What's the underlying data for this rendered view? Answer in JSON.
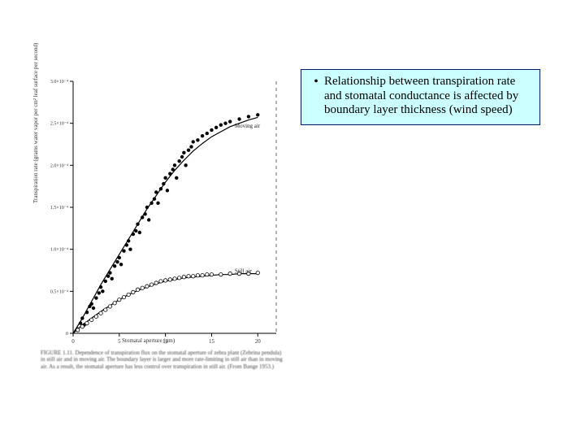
{
  "bullet": {
    "text": "Relationship between transpiration rate and stomatal conductance is affected by boundary layer thickness (wind speed)"
  },
  "chart": {
    "type": "scatter",
    "xlim": [
      0,
      22
    ],
    "ylim": [
      0,
      3.0
    ],
    "y_scale_label": "×10⁻⁴",
    "xlabel": "Stomatal aperture (μm)",
    "ylabel": "Transpiration rate (grams water vapor per cm² leaf surface per second)",
    "xticks": [
      0,
      5,
      10,
      15,
      20
    ],
    "yticks": [
      0,
      0.5,
      1.0,
      1.5,
      2.0,
      2.5,
      3.0
    ],
    "ytick_labels": [
      "0",
      "0.5×10⁻⁴",
      "1.0×10⁻⁴",
      "1.5×10⁻⁴",
      "2.0×10⁻⁴",
      "2.5×10⁻⁴",
      "3.0×10⁻⁴"
    ],
    "background_color": "#ffffff",
    "axis_color": "#000000",
    "marker_color": "#000000",
    "marker_size": 2.2,
    "line_width": 1.2,
    "series": [
      {
        "name": "Moving air",
        "marker": "filled-circle",
        "label_pos": [
          17.5,
          2.45
        ],
        "data": [
          [
            0.5,
            0.05
          ],
          [
            0.8,
            0.12
          ],
          [
            1.0,
            0.18
          ],
          [
            1.2,
            0.1
          ],
          [
            1.5,
            0.25
          ],
          [
            1.8,
            0.32
          ],
          [
            2.0,
            0.35
          ],
          [
            2.2,
            0.3
          ],
          [
            2.5,
            0.42
          ],
          [
            2.8,
            0.48
          ],
          [
            3.0,
            0.55
          ],
          [
            3.2,
            0.5
          ],
          [
            3.5,
            0.62
          ],
          [
            3.8,
            0.68
          ],
          [
            4.0,
            0.72
          ],
          [
            4.2,
            0.65
          ],
          [
            4.5,
            0.8
          ],
          [
            4.8,
            0.85
          ],
          [
            5.0,
            0.9
          ],
          [
            5.2,
            0.82
          ],
          [
            5.5,
            0.98
          ],
          [
            5.8,
            1.05
          ],
          [
            6.0,
            1.1
          ],
          [
            6.2,
            1.0
          ],
          [
            6.5,
            1.18
          ],
          [
            6.8,
            1.22
          ],
          [
            7.0,
            1.3
          ],
          [
            7.2,
            1.2
          ],
          [
            7.5,
            1.38
          ],
          [
            7.8,
            1.42
          ],
          [
            8.0,
            1.5
          ],
          [
            8.2,
            1.35
          ],
          [
            8.5,
            1.55
          ],
          [
            8.8,
            1.6
          ],
          [
            9.0,
            1.68
          ],
          [
            9.2,
            1.55
          ],
          [
            9.5,
            1.72
          ],
          [
            9.8,
            1.78
          ],
          [
            10.0,
            1.85
          ],
          [
            10.2,
            1.7
          ],
          [
            10.5,
            1.9
          ],
          [
            10.8,
            1.95
          ],
          [
            11.0,
            2.0
          ],
          [
            11.2,
            1.85
          ],
          [
            11.5,
            2.05
          ],
          [
            11.8,
            2.1
          ],
          [
            12.0,
            2.15
          ],
          [
            12.2,
            2.0
          ],
          [
            12.5,
            2.18
          ],
          [
            12.8,
            2.22
          ],
          [
            13.0,
            2.28
          ],
          [
            13.5,
            2.3
          ],
          [
            14.0,
            2.35
          ],
          [
            14.5,
            2.38
          ],
          [
            15.0,
            2.42
          ],
          [
            15.5,
            2.45
          ],
          [
            16.0,
            2.48
          ],
          [
            16.5,
            2.5
          ],
          [
            17.0,
            2.52
          ],
          [
            18.0,
            2.55
          ],
          [
            19.0,
            2.58
          ],
          [
            20.0,
            2.6
          ]
        ],
        "fit_curve": [
          [
            0,
            0
          ],
          [
            1,
            0.18
          ],
          [
            2,
            0.38
          ],
          [
            3,
            0.58
          ],
          [
            4,
            0.76
          ],
          [
            5,
            0.94
          ],
          [
            6,
            1.12
          ],
          [
            7,
            1.3
          ],
          [
            8,
            1.48
          ],
          [
            9,
            1.64
          ],
          [
            10,
            1.8
          ],
          [
            11,
            1.94
          ],
          [
            12,
            2.06
          ],
          [
            13,
            2.17
          ],
          [
            14,
            2.26
          ],
          [
            15,
            2.34
          ],
          [
            16,
            2.4
          ],
          [
            17,
            2.46
          ],
          [
            18,
            2.5
          ],
          [
            19,
            2.54
          ],
          [
            20,
            2.57
          ]
        ]
      },
      {
        "name": "Still air",
        "marker": "open-circle",
        "label_pos": [
          17.5,
          0.72
        ],
        "data": [
          [
            0.5,
            0.04
          ],
          [
            1.0,
            0.08
          ],
          [
            1.5,
            0.12
          ],
          [
            2.0,
            0.16
          ],
          [
            2.5,
            0.2
          ],
          [
            3.0,
            0.24
          ],
          [
            3.5,
            0.28
          ],
          [
            4.0,
            0.32
          ],
          [
            4.5,
            0.36
          ],
          [
            5.0,
            0.4
          ],
          [
            5.5,
            0.43
          ],
          [
            6.0,
            0.46
          ],
          [
            6.5,
            0.49
          ],
          [
            7.0,
            0.52
          ],
          [
            7.5,
            0.54
          ],
          [
            8.0,
            0.56
          ],
          [
            8.5,
            0.58
          ],
          [
            9.0,
            0.6
          ],
          [
            9.5,
            0.62
          ],
          [
            10.0,
            0.63
          ],
          [
            10.5,
            0.64
          ],
          [
            11.0,
            0.65
          ],
          [
            11.5,
            0.66
          ],
          [
            12.0,
            0.67
          ],
          [
            12.5,
            0.68
          ],
          [
            13.0,
            0.68
          ],
          [
            13.5,
            0.69
          ],
          [
            14.0,
            0.69
          ],
          [
            14.5,
            0.7
          ],
          [
            15.0,
            0.7
          ],
          [
            16.0,
            0.7
          ],
          [
            17.0,
            0.71
          ],
          [
            18.0,
            0.71
          ],
          [
            19.0,
            0.71
          ],
          [
            20.0,
            0.72
          ]
        ],
        "fit_curve": [
          [
            0,
            0
          ],
          [
            1,
            0.1
          ],
          [
            2,
            0.18
          ],
          [
            3,
            0.26
          ],
          [
            4,
            0.33
          ],
          [
            5,
            0.4
          ],
          [
            6,
            0.46
          ],
          [
            7,
            0.51
          ],
          [
            8,
            0.55
          ],
          [
            9,
            0.59
          ],
          [
            10,
            0.62
          ],
          [
            11,
            0.64
          ],
          [
            12,
            0.66
          ],
          [
            13,
            0.67
          ],
          [
            14,
            0.68
          ],
          [
            15,
            0.69
          ],
          [
            16,
            0.7
          ],
          [
            17,
            0.7
          ],
          [
            18,
            0.71
          ],
          [
            19,
            0.71
          ],
          [
            20,
            0.71
          ]
        ]
      }
    ],
    "caption": "FIGURE 1.11. Dependence of transpiration flux on the stomatal aperture of zebra plant (Zebrina pendula) in still air and in moving air. The boundary layer is larger and more rate-limiting in still air than in moving air. As a result, the stomatal aperture has less control over transpiration in still air. (From Bange 1953.)"
  }
}
